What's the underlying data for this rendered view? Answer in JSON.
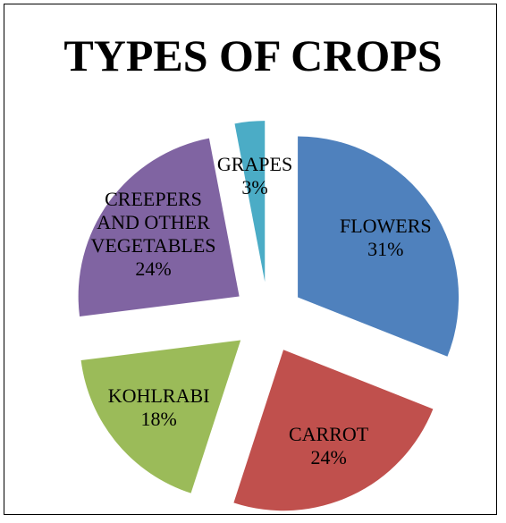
{
  "chart_data": {
    "type": "pie",
    "title": "TYPES OF CROPS",
    "categories": [
      "FLOWERS",
      "CARROT",
      "KOHLRABI",
      "CREEPERS AND OTHER VEGETABLES",
      "GRAPES"
    ],
    "values": [
      31,
      24,
      18,
      24,
      3
    ],
    "value_labels": [
      "31%",
      "24%",
      "18%",
      "24%",
      "3%"
    ],
    "colors": [
      "#4f81bd",
      "#c0504d",
      "#9bbb59",
      "#8064a2",
      "#4bacc6"
    ]
  }
}
